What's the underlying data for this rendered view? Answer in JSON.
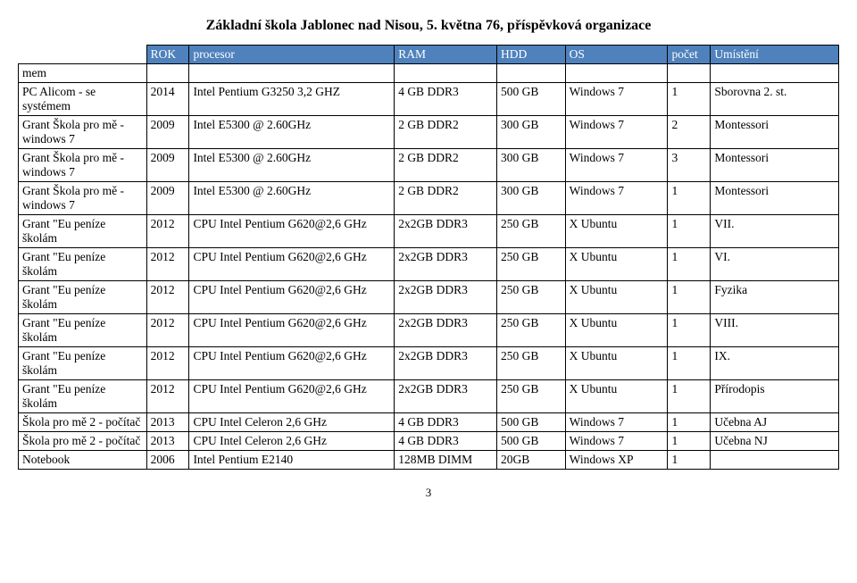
{
  "page": {
    "title": "Základní škola Jablonec nad Nisou, 5. května 76, příspěvková organizace",
    "pagenum": "3"
  },
  "headers": {
    "name": "",
    "year": "ROK",
    "proc": "procesor",
    "ram": "RAM",
    "hdd": "HDD",
    "os": "OS",
    "count": "počet",
    "loc": "Umístění"
  },
  "rows": [
    {
      "name": "mem",
      "year": "",
      "proc": "",
      "ram": "",
      "hdd": "",
      "os": "",
      "count": "",
      "loc": ""
    },
    {
      "name": "PC Alicom - se systémem",
      "year": "2014",
      "proc": "Intel Pentium G3250 3,2 GHZ",
      "ram": "4 GB DDR3",
      "hdd": "500 GB",
      "os": "Windows 7",
      "count": "1",
      "loc": "Sborovna 2. st."
    },
    {
      "name": "Grant Škola pro mě - windows 7",
      "year": "2009",
      "proc": "Intel E5300 @ 2.60GHz",
      "ram": "2 GB DDR2",
      "hdd": "300 GB",
      "os": "Windows 7",
      "count": "2",
      "loc": "Montessori"
    },
    {
      "name": "Grant Škola pro mě - windows 7",
      "year": "2009",
      "proc": "Intel E5300 @ 2.60GHz",
      "ram": "2 GB DDR2",
      "hdd": "300 GB",
      "os": "Windows 7",
      "count": "3",
      "loc": "Montessori"
    },
    {
      "name": "Grant Škola pro mě - windows 7",
      "year": "2009",
      "proc": "Intel E5300 @ 2.60GHz",
      "ram": "2 GB DDR2",
      "hdd": "300 GB",
      "os": "Windows 7",
      "count": "1",
      "loc": "Montessori"
    },
    {
      "name": "Grant \"Eu peníze školám",
      "year": "2012",
      "proc": "CPU Intel Pentium G620@2,6 GHz",
      "ram": "2x2GB DDR3",
      "hdd": "250 GB",
      "os": "X Ubuntu",
      "count": "1",
      "loc": "VII."
    },
    {
      "name": "Grant \"Eu peníze školám",
      "year": "2012",
      "proc": "CPU Intel Pentium G620@2,6 GHz",
      "ram": "2x2GB DDR3",
      "hdd": "250 GB",
      "os": "X Ubuntu",
      "count": "1",
      "loc": "VI."
    },
    {
      "name": "Grant \"Eu peníze školám",
      "year": "2012",
      "proc": "CPU Intel Pentium G620@2,6 GHz",
      "ram": "2x2GB DDR3",
      "hdd": "250 GB",
      "os": "X Ubuntu",
      "count": "1",
      "loc": "Fyzika"
    },
    {
      "name": "Grant \"Eu peníze školám",
      "year": "2012",
      "proc": "CPU Intel Pentium G620@2,6 GHz",
      "ram": "2x2GB DDR3",
      "hdd": "250 GB",
      "os": "X Ubuntu",
      "count": "1",
      "loc": "VIII."
    },
    {
      "name": "Grant \"Eu peníze školám",
      "year": "2012",
      "proc": "CPU Intel Pentium G620@2,6 GHz",
      "ram": "2x2GB DDR3",
      "hdd": "250 GB",
      "os": "X Ubuntu",
      "count": "1",
      "loc": "IX."
    },
    {
      "name": "Grant \"Eu peníze školám",
      "year": "2012",
      "proc": "CPU Intel Pentium G620@2,6 GHz",
      "ram": "2x2GB DDR3",
      "hdd": "250 GB",
      "os": "X Ubuntu",
      "count": "1",
      "loc": "Přírodopis"
    },
    {
      "name": "Škola pro mě 2 - počítač",
      "year": "2013",
      "proc": "CPU Intel Celeron 2,6 GHz",
      "ram": "4 GB DDR3",
      "hdd": "500 GB",
      "os": "Windows 7",
      "count": "1",
      "loc": "Učebna AJ"
    },
    {
      "name": "Škola pro mě 2 - počítač",
      "year": "2013",
      "proc": "CPU Intel Celeron 2,6 GHz",
      "ram": "4 GB DDR3",
      "hdd": "500 GB",
      "os": "Windows 7",
      "count": "1",
      "loc": "Učebna NJ"
    },
    {
      "name": "Notebook",
      "year": "2006",
      "proc": "Intel Pentium E2140",
      "ram": "128MB DIMM",
      "hdd": "20GB",
      "os": "Windows XP",
      "count": "1",
      "loc": ""
    }
  ],
  "style": {
    "header_bg": "#4f81bd",
    "header_fg": "#ffffff",
    "border_color": "#000000",
    "font_family": "Times New Roman",
    "title_fontsize": 16,
    "body_fontsize": 13.5
  }
}
